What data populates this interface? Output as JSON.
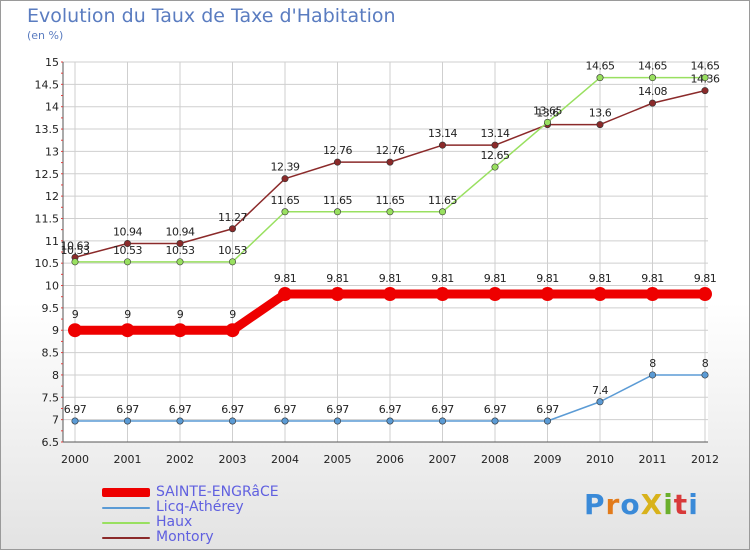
{
  "title": "Evolution du Taux de Taxe d'Habitation",
  "subtitle": "(en %)",
  "logo": {
    "text": "ProXiti",
    "colors": [
      "#3a8ad8",
      "#e27b1b",
      "#3a8ad8",
      "#d8b21b",
      "#6aaf2c",
      "#d83a3a",
      "#3a8ad8"
    ]
  },
  "chart_data": {
    "type": "line",
    "x": [
      2000,
      2001,
      2002,
      2003,
      2004,
      2005,
      2006,
      2007,
      2008,
      2009,
      2010,
      2011,
      2012
    ],
    "ylim": [
      6.5,
      15
    ],
    "yticks": [
      6.5,
      7,
      7.5,
      8,
      8.5,
      9,
      9.5,
      10,
      10.5,
      11,
      11.5,
      12,
      12.5,
      13,
      13.5,
      14,
      14.5,
      15
    ],
    "ytick_labels": [
      "6.5",
      "7",
      "7.5",
      "8",
      "8.5",
      "9",
      "9.5",
      "10",
      "10.5",
      "11",
      "11.5",
      "12",
      "12.5",
      "13",
      "13.5",
      "14",
      "14.5",
      "15"
    ],
    "grid": true,
    "series": [
      {
        "name": "SAINTE-ENGRâCE",
        "color": "#ee0000",
        "thick": true,
        "values": [
          9,
          9,
          9,
          9,
          9.81,
          9.81,
          9.81,
          9.81,
          9.81,
          9.81,
          9.81,
          9.81,
          9.81
        ],
        "labels": [
          "9",
          "9",
          "9",
          "9",
          "9.81",
          "9.81",
          "9.81",
          "9.81",
          "9.81",
          "9.81",
          "9.81",
          "9.81",
          "9.81"
        ]
      },
      {
        "name": "Licq-Athérey",
        "color": "#5b9bd5",
        "thick": false,
        "values": [
          6.97,
          6.97,
          6.97,
          6.97,
          6.97,
          6.97,
          6.97,
          6.97,
          6.97,
          6.97,
          7.4,
          8,
          8
        ],
        "labels": [
          "6.97",
          "6.97",
          "6.97",
          "6.97",
          "6.97",
          "6.97",
          "6.97",
          "6.97",
          "6.97",
          "6.97",
          "7.4",
          "8",
          "8"
        ]
      },
      {
        "name": "Haux",
        "color": "#99e060",
        "thick": false,
        "values": [
          10.53,
          10.53,
          10.53,
          10.53,
          11.65,
          11.65,
          11.65,
          11.65,
          12.65,
          13.65,
          14.65,
          14.65,
          14.65
        ],
        "labels": [
          "10.53",
          "10.53",
          "10.53",
          "10.53",
          "11.65",
          "11.65",
          "11.65",
          "11.65",
          "12.65",
          "13.65",
          "14.65",
          "14.65",
          "14.65"
        ]
      },
      {
        "name": "Montory",
        "color": "#8b2a2a",
        "thick": false,
        "values": [
          10.63,
          10.94,
          10.94,
          11.27,
          12.39,
          12.76,
          12.76,
          13.14,
          13.14,
          13.6,
          13.6,
          14.08,
          14.36
        ],
        "labels": [
          "10.63",
          "10.94",
          "10.94",
          "11.27",
          "12.39",
          "12.76",
          "12.76",
          "13.14",
          "13.14",
          "13.6",
          "13.6",
          "14.08",
          "14.36"
        ]
      }
    ]
  }
}
